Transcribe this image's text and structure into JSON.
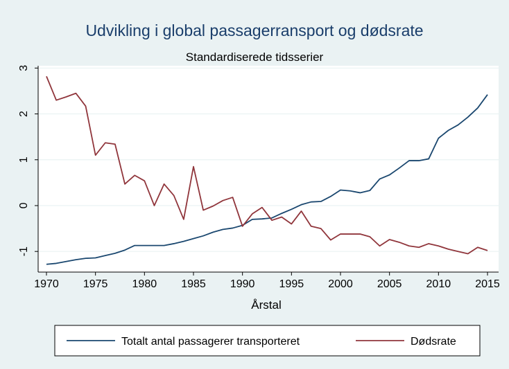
{
  "chart_data": {
    "type": "line",
    "title": "Udvikling i global passagerransport og dødsrate",
    "subtitle": "Standardiserede tidsserier",
    "xlabel": "Årstal",
    "ylabel": "",
    "xlim": [
      1970,
      2015
    ],
    "ylim": [
      -1.45,
      3.05
    ],
    "x_ticks": [
      1970,
      1975,
      1980,
      1985,
      1990,
      1995,
      2000,
      2005,
      2010,
      2015
    ],
    "y_ticks": [
      -1,
      0,
      1,
      2,
      3
    ],
    "grid": true,
    "legend_position": "bottom",
    "x": [
      1970,
      1971,
      1972,
      1973,
      1974,
      1975,
      1976,
      1977,
      1978,
      1979,
      1980,
      1981,
      1982,
      1983,
      1984,
      1985,
      1986,
      1987,
      1988,
      1989,
      1990,
      1991,
      1992,
      1993,
      1994,
      1995,
      1996,
      1997,
      1998,
      1999,
      2000,
      2001,
      2002,
      2003,
      2004,
      2005,
      2006,
      2007,
      2008,
      2009,
      2010,
      2011,
      2012,
      2013,
      2014,
      2015
    ],
    "series": [
      {
        "name": "Totalt antal passagerer transporteret",
        "color": "#1a476f",
        "values": [
          -1.28,
          -1.26,
          -1.22,
          -1.18,
          -1.15,
          -1.14,
          -1.09,
          -1.04,
          -0.97,
          -0.87,
          -0.87,
          -0.87,
          -0.87,
          -0.83,
          -0.78,
          -0.72,
          -0.66,
          -0.58,
          -0.52,
          -0.49,
          -0.43,
          -0.3,
          -0.29,
          -0.27,
          -0.17,
          -0.08,
          0.02,
          0.08,
          0.09,
          0.2,
          0.34,
          0.32,
          0.28,
          0.33,
          0.58,
          0.67,
          0.82,
          0.98,
          0.98,
          1.02,
          1.47,
          1.64,
          1.76,
          1.93,
          2.13,
          2.42
        ]
      },
      {
        "name": "Dødsrate",
        "color": "#90353b",
        "values": [
          2.82,
          2.3,
          2.37,
          2.45,
          2.17,
          1.1,
          1.37,
          1.34,
          0.47,
          0.66,
          0.54,
          0.0,
          0.47,
          0.22,
          -0.3,
          0.85,
          -0.1,
          -0.01,
          0.11,
          0.18,
          -0.45,
          -0.18,
          -0.04,
          -0.32,
          -0.25,
          -0.4,
          -0.12,
          -0.45,
          -0.5,
          -0.75,
          -0.62,
          -0.62,
          -0.62,
          -0.68,
          -0.88,
          -0.74,
          -0.8,
          -0.88,
          -0.91,
          -0.83,
          -0.88,
          -0.95,
          -1.0,
          -1.05,
          -0.91,
          -0.98
        ]
      }
    ]
  }
}
